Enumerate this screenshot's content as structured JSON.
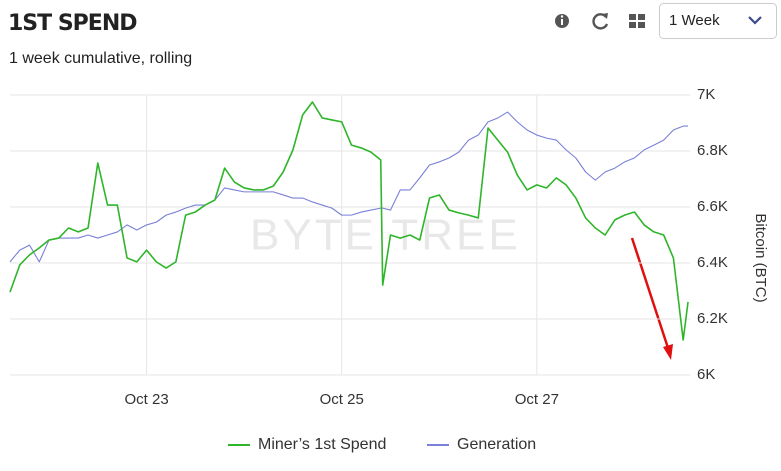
{
  "widget": {
    "dropdown": "1 Week"
  },
  "chart_data": {
    "type": "line",
    "title": "1ST SPEND",
    "subtitle": "1 week cumulative, rolling",
    "ylabel": "Bitcoin (BTC)",
    "watermark": "BYTE TREE",
    "x": [
      21.6,
      21.7,
      21.8,
      21.9,
      22.0,
      22.1,
      22.2,
      22.3,
      22.4,
      22.5,
      22.6,
      22.7,
      22.8,
      22.9,
      23.0,
      23.1,
      23.2,
      23.3,
      23.4,
      23.5,
      23.6,
      23.7,
      23.8,
      23.9,
      24.0,
      24.1,
      24.2,
      24.3,
      24.4,
      24.5,
      24.6,
      24.7,
      24.8,
      24.9,
      25.0,
      25.1,
      25.2,
      25.3,
      25.4,
      25.42,
      25.5,
      25.6,
      25.7,
      25.8,
      25.9,
      26.0,
      26.1,
      26.2,
      26.3,
      26.4,
      26.5,
      26.6,
      26.7,
      26.8,
      26.9,
      27.0,
      27.1,
      27.2,
      27.3,
      27.4,
      27.5,
      27.6,
      27.7,
      27.8,
      27.9,
      28.0,
      28.1,
      28.2,
      28.3,
      28.4,
      28.5,
      28.55
    ],
    "series": [
      {
        "name": "Miner’s 1st Spend",
        "color": "#2fb52a",
        "values": [
          6296,
          6393,
          6429,
          6454,
          6482,
          6489,
          6525,
          6511,
          6525,
          6757,
          6607,
          6607,
          6418,
          6404,
          6446,
          6404,
          6382,
          6404,
          6571,
          6582,
          6607,
          6625,
          6739,
          6689,
          6668,
          6661,
          6661,
          6675,
          6725,
          6804,
          6929,
          6975,
          6918,
          6911,
          6904,
          6821,
          6811,
          6796,
          6768,
          6321,
          6500,
          6489,
          6500,
          6482,
          6632,
          6643,
          6589,
          6579,
          6571,
          6561,
          6882,
          6839,
          6796,
          6714,
          6661,
          6679,
          6668,
          6704,
          6679,
          6632,
          6561,
          6525,
          6500,
          6554,
          6571,
          6582,
          6536,
          6511,
          6500,
          6418,
          6125,
          6261
        ]
      },
      {
        "name": "Generation",
        "color": "#7b80d8",
        "values": [
          6404,
          6446,
          6464,
          6404,
          6482,
          6489,
          6489,
          6489,
          6500,
          6489,
          6500,
          6511,
          6536,
          6518,
          6536,
          6546,
          6571,
          6582,
          6596,
          6607,
          6607,
          6625,
          6668,
          6661,
          6654,
          6654,
          6654,
          6654,
          6643,
          6632,
          6632,
          6618,
          6607,
          6596,
          6571,
          6571,
          6582,
          6589,
          6596,
          6596,
          6589,
          6661,
          6661,
          6704,
          6750,
          6761,
          6775,
          6796,
          6839,
          6857,
          6904,
          6918,
          6939,
          6904,
          6875,
          6857,
          6846,
          6839,
          6804,
          6775,
          6725,
          6696,
          6725,
          6739,
          6761,
          6775,
          6804,
          6821,
          6839,
          6875,
          6889,
          6889
        ]
      }
    ],
    "xlim": [
      21.6,
      28.57
    ],
    "xticks": [
      {
        "value": 23,
        "label": "Oct 23"
      },
      {
        "value": 25,
        "label": "Oct 25"
      },
      {
        "value": 27,
        "label": "Oct 27"
      }
    ],
    "ylim": [
      6000,
      7000
    ],
    "yticks": [
      {
        "value": 6000,
        "label": "6K"
      },
      {
        "value": 6200,
        "label": "6.2K"
      },
      {
        "value": 6400,
        "label": "6.4K"
      },
      {
        "value": 6600,
        "label": "6.6K"
      },
      {
        "value": 6800,
        "label": "6.8K"
      },
      {
        "value": 7000,
        "label": "7K"
      }
    ],
    "grid": true,
    "legend": "bottom"
  }
}
